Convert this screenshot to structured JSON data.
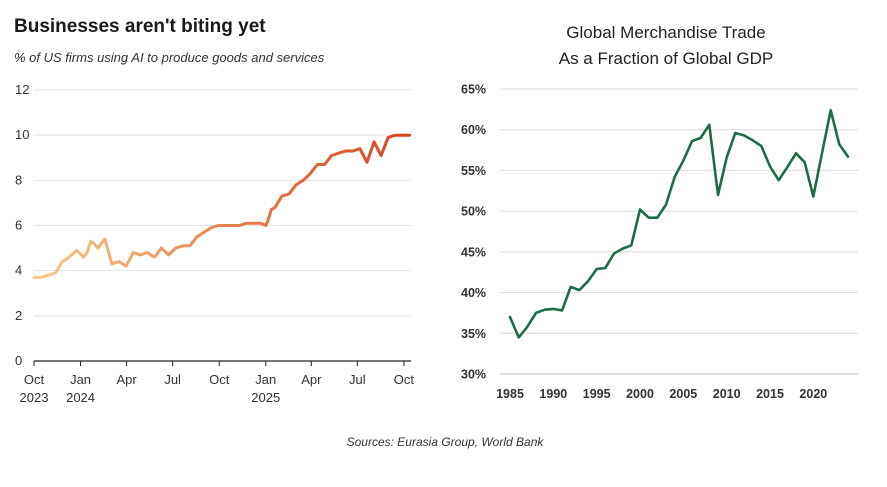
{
  "chart_data": [
    {
      "type": "line",
      "title": "Businesses aren't biting yet",
      "subtitle": "% of US firms using AI to produce goods and services",
      "xlabel": "",
      "ylabel": "",
      "ylim": [
        0,
        12
      ],
      "yticks": [
        "0",
        "2",
        "4",
        "6",
        "8",
        "10",
        "12"
      ],
      "xlim": [
        "2023-10-01",
        "2025-10-15"
      ],
      "xticks": [
        {
          "date": "2023-10-01",
          "label": "Oct",
          "year": "2023"
        },
        {
          "date": "2024-01-01",
          "label": "Jan",
          "year": "2024"
        },
        {
          "date": "2024-04-01",
          "label": "Apr",
          "year": ""
        },
        {
          "date": "2024-07-01",
          "label": "Jul",
          "year": ""
        },
        {
          "date": "2024-10-01",
          "label": "Oct",
          "year": ""
        },
        {
          "date": "2025-01-01",
          "label": "Jan",
          "year": "2025"
        },
        {
          "date": "2025-04-01",
          "label": "Apr",
          "year": ""
        },
        {
          "date": "2025-07-01",
          "label": "Jul",
          "year": ""
        },
        {
          "date": "2025-10-01",
          "label": "Oct",
          "year": ""
        }
      ],
      "grid": true,
      "color_start": "#f9c98a",
      "color_end": "#d8401f",
      "series": [
        {
          "x": [
            "2023-10-01",
            "2023-10-15",
            "2023-10-29",
            "2023-11-12",
            "2023-11-26",
            "2023-12-10",
            "2023-12-24",
            "2024-01-07",
            "2024-01-14",
            "2024-01-21",
            "2024-01-28",
            "2024-02-04",
            "2024-02-18",
            "2024-03-03",
            "2024-03-17",
            "2024-03-31",
            "2024-04-14",
            "2024-04-28",
            "2024-05-12",
            "2024-05-26",
            "2024-06-09",
            "2024-06-23",
            "2024-07-07",
            "2024-07-21",
            "2024-08-04",
            "2024-08-18",
            "2024-09-01",
            "2024-09-15",
            "2024-09-29",
            "2024-10-13",
            "2024-10-27",
            "2024-11-10",
            "2024-11-24",
            "2024-12-08",
            "2024-12-22",
            "2025-01-01",
            "2025-01-05",
            "2025-01-12",
            "2025-01-19",
            "2025-02-02",
            "2025-02-16",
            "2025-03-02",
            "2025-03-16",
            "2025-03-30",
            "2025-04-13",
            "2025-04-27",
            "2025-05-11",
            "2025-05-25",
            "2025-06-08",
            "2025-06-22",
            "2025-07-06",
            "2025-07-20",
            "2025-08-03",
            "2025-08-17",
            "2025-08-31",
            "2025-09-14",
            "2025-09-28",
            "2025-10-12"
          ],
          "y": [
            3.7,
            3.7,
            3.8,
            3.9,
            4.4,
            4.6,
            4.9,
            4.6,
            4.8,
            5.3,
            5.2,
            5.0,
            5.4,
            4.3,
            4.4,
            4.2,
            4.8,
            4.7,
            4.8,
            4.6,
            5.0,
            4.7,
            5.0,
            5.1,
            5.1,
            5.5,
            5.7,
            5.9,
            6.0,
            6.0,
            6.0,
            6.0,
            6.1,
            6.1,
            6.1,
            6.0,
            6.2,
            6.7,
            6.8,
            7.3,
            7.4,
            7.8,
            8.0,
            8.3,
            8.7,
            8.7,
            9.1,
            9.2,
            9.3,
            9.3,
            9.4,
            8.8,
            9.7,
            9.1,
            9.9,
            10.0,
            10.0,
            10.0
          ]
        }
      ]
    },
    {
      "type": "line",
      "title": "Global Merchandise Trade",
      "subtitle": "As a Fraction of Global GDP",
      "xlabel": "",
      "ylabel": "",
      "xlim": [
        1985,
        2024
      ],
      "ylim": [
        30,
        65
      ],
      "xticks": [
        1985,
        1990,
        1995,
        2000,
        2005,
        2010,
        2015,
        2020
      ],
      "yticks": [
        "30%",
        "35%",
        "40%",
        "45%",
        "50%",
        "55%",
        "60%",
        "65%"
      ],
      "grid": true,
      "color": "#1f6b45",
      "series": [
        {
          "x": [
            1985,
            1986,
            1987,
            1988,
            1989,
            1990,
            1991,
            1992,
            1993,
            1994,
            1995,
            1996,
            1997,
            1998,
            1999,
            2000,
            2001,
            2002,
            2003,
            2004,
            2005,
            2006,
            2007,
            2008,
            2009,
            2010,
            2011,
            2012,
            2013,
            2014,
            2015,
            2016,
            2017,
            2018,
            2019,
            2020,
            2021,
            2022,
            2023,
            2024
          ],
          "y": [
            37.0,
            34.5,
            35.8,
            37.5,
            37.9,
            38.0,
            37.8,
            40.7,
            40.3,
            41.4,
            42.9,
            43.0,
            44.8,
            45.4,
            45.8,
            50.2,
            49.2,
            49.2,
            50.8,
            54.2,
            56.2,
            58.6,
            59.0,
            60.6,
            52.0,
            56.6,
            59.6,
            59.3,
            58.7,
            58.0,
            55.5,
            53.8,
            55.4,
            57.1,
            56.0,
            51.8,
            57.1,
            62.4,
            58.2,
            56.7
          ]
        }
      ]
    }
  ],
  "source_note": "Sources: Eurasia Group, World Bank"
}
